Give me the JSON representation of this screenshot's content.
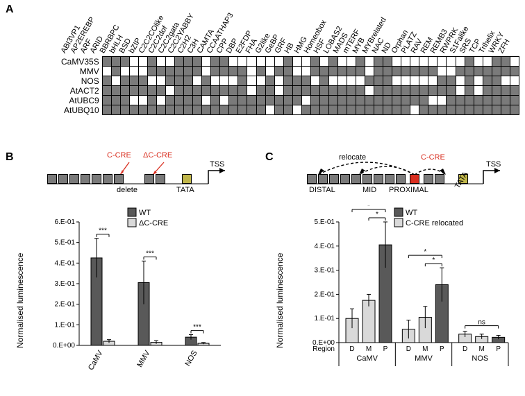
{
  "panelA": {
    "label": "A",
    "columns": [
      "ABI3VP1",
      "AP2EREBP",
      "ARF",
      "ARID",
      "BBRBPC",
      "bHLH",
      "BSD",
      "bZIP",
      "C2C2COlike",
      "C2C2dof",
      "C2C2gata",
      "C2C2YABBY",
      "C2H2",
      "C3H",
      "CAMTA",
      "CCAATHAP3",
      "CPP",
      "DBP",
      "E2FDP",
      "FHA",
      "G2like",
      "GeBP",
      "GRF",
      "HB",
      "HMG",
      "Homeobox",
      "HSF",
      "LOBAS2",
      "MADS",
      "mTERF",
      "MYB",
      "MYBrelated",
      "NAC",
      "ND",
      "Orphan",
      "PLATZ",
      "RAV",
      "REM",
      "REMB3",
      "RWPRK",
      "S1Falike",
      "SRS",
      "TCP",
      "Trihelix",
      "WRKY",
      "ZFH"
    ],
    "rows": [
      "CaMV35S",
      "MMV",
      "NOS",
      "AtACT2",
      "AtUBC9",
      "AtUBQ10"
    ],
    "matrix": [
      [
        1,
        1,
        1,
        0,
        0,
        1,
        0,
        0,
        1,
        1,
        1,
        0,
        1,
        1,
        0,
        0,
        0,
        0,
        0,
        0,
        1,
        0,
        0,
        1,
        0,
        1,
        0,
        0,
        1,
        0,
        1,
        1,
        0,
        0,
        0,
        0,
        0,
        0,
        0,
        0,
        1,
        0,
        0,
        1,
        1,
        0
      ],
      [
        0,
        1,
        0,
        0,
        0,
        1,
        1,
        1,
        1,
        1,
        1,
        0,
        1,
        1,
        1,
        1,
        0,
        1,
        0,
        1,
        1,
        0,
        0,
        1,
        1,
        1,
        1,
        1,
        1,
        0,
        1,
        1,
        1,
        1,
        1,
        1,
        1,
        0,
        0,
        1,
        1,
        1,
        1,
        1,
        1,
        1
      ],
      [
        1,
        0,
        1,
        1,
        1,
        0,
        0,
        1,
        1,
        1,
        0,
        1,
        0,
        0,
        0,
        1,
        0,
        0,
        1,
        0,
        1,
        1,
        1,
        0,
        1,
        0,
        0,
        0,
        0,
        1,
        1,
        1,
        0,
        0,
        0,
        0,
        0,
        1,
        1,
        0,
        1,
        0,
        1,
        1,
        0,
        0
      ],
      [
        1,
        1,
        1,
        1,
        1,
        1,
        1,
        0,
        1,
        1,
        1,
        1,
        1,
        1,
        1,
        1,
        0,
        1,
        1,
        0,
        1,
        1,
        1,
        1,
        1,
        1,
        1,
        1,
        1,
        0,
        1,
        1,
        1,
        1,
        1,
        1,
        1,
        1,
        1,
        0,
        1,
        0,
        1,
        1,
        1,
        1
      ],
      [
        1,
        1,
        1,
        0,
        0,
        1,
        0,
        1,
        1,
        1,
        1,
        0,
        1,
        0,
        1,
        1,
        1,
        1,
        1,
        1,
        1,
        1,
        0,
        1,
        1,
        1,
        1,
        1,
        1,
        1,
        1,
        1,
        1,
        1,
        1,
        1,
        0,
        0,
        1,
        1,
        1,
        1,
        1,
        1,
        1,
        1
      ],
      [
        1,
        1,
        1,
        1,
        1,
        1,
        1,
        1,
        1,
        1,
        1,
        1,
        1,
        1,
        1,
        1,
        1,
        1,
        0,
        1,
        1,
        0,
        1,
        1,
        1,
        1,
        1,
        1,
        1,
        1,
        1,
        1,
        1,
        1,
        0,
        1,
        1,
        1,
        1,
        1,
        1,
        1,
        1,
        1,
        1,
        1
      ]
    ],
    "cell_on_color": "#7a7a7a",
    "cell_off_color": "#ffffff"
  },
  "panelB": {
    "label": "B",
    "schematic": {
      "delete_label": "delete",
      "tata_label": "TATA",
      "tss_label": "TSS",
      "ccre_label": "C-CRE",
      "dccre_label": "ΔC-CRE"
    },
    "chart": {
      "ylabel": "Normalised luminescence",
      "ylim": [
        0,
        0.6
      ],
      "ytick_step": 0.1,
      "yticks": [
        "0.E+00",
        "1.E-01",
        "2.E-01",
        "3.E-01",
        "4.E-01",
        "5.E-01",
        "6.E-01"
      ],
      "categories": [
        "CaMV",
        "MMV",
        "NOS"
      ],
      "legend": [
        "WT",
        "ΔC-CRE"
      ],
      "colors": {
        "WT": "#595959",
        "ΔC-CRE": "#d9d9d9"
      },
      "wt": [
        0.425,
        0.305,
        0.04
      ],
      "dcre": [
        0.02,
        0.015,
        0.01
      ],
      "wt_err": [
        0.095,
        0.105,
        0.012
      ],
      "dcre_err": [
        0.008,
        0.008,
        0.004
      ],
      "sig": [
        "***",
        "***",
        "***"
      ]
    }
  },
  "panelC": {
    "label": "C",
    "schematic": {
      "relocate_label": "relocate",
      "distal_label": "DISTAL",
      "mid_label": "MID",
      "proximal_label": "PROXIMAL",
      "ccre_label": "C-CRE",
      "tata_label": "TATA",
      "tss_label": "TSS"
    },
    "chart": {
      "ylabel": "Normalised luminescence",
      "ylim": [
        0,
        0.5
      ],
      "ytick_step": 0.1,
      "yticks": [
        "0.E+00",
        "1.E-01",
        "2.E-01",
        "3.E-01",
        "4.E-01",
        "5.E-01"
      ],
      "groups": [
        "CaMV",
        "MMV",
        "NOS"
      ],
      "region_label": "Region",
      "regions": [
        "D",
        "M",
        "P"
      ],
      "legend": [
        "WT",
        "C-CRE relocated"
      ],
      "colors": {
        "WT": "#595959",
        "C-CRE relocated": "#d9d9d9"
      },
      "values": {
        "CaMV": {
          "D": 0.1,
          "M": 0.175,
          "P": 0.405
        },
        "MMV": {
          "D": 0.055,
          "M": 0.105,
          "P": 0.24
        },
        "NOS": {
          "D": 0.035,
          "M": 0.025,
          "P": 0.022
        }
      },
      "errors": {
        "CaMV": {
          "D": 0.04,
          "M": 0.025,
          "P": 0.095
        },
        "MMV": {
          "D": 0.038,
          "M": 0.045,
          "P": 0.07
        },
        "NOS": {
          "D": 0.012,
          "M": 0.01,
          "P": 0.008
        }
      },
      "wt_region": "P",
      "sig": {
        "CaMV": [
          "*",
          "*"
        ],
        "MMV": [
          "*",
          "*"
        ],
        "NOS": [
          "ns"
        ]
      }
    }
  }
}
